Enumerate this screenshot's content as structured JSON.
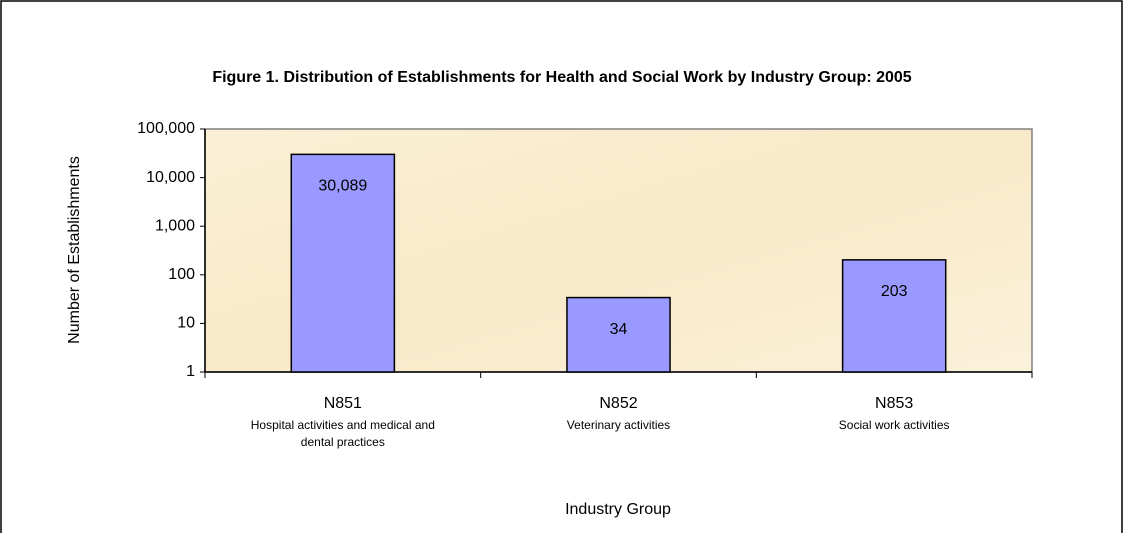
{
  "chart_data": {
    "type": "bar",
    "title": "Figure 1.   Distribution of Establishments for Health and Social Work by Industry Group:  2005",
    "categories": [
      "N851",
      "N852",
      "N853"
    ],
    "category_descriptions": [
      "Hospital activities and medical and dental practices",
      "Veterinary activities",
      "Social work activities"
    ],
    "values": [
      30089,
      34,
      203
    ],
    "value_labels": [
      "30,089",
      "34",
      "203"
    ],
    "color": "#9999ff",
    "x_label": "Industry Group",
    "y_label": "Number of Establishments",
    "yscale": "log",
    "ylim": [
      1,
      100000
    ],
    "yticks": [
      1,
      10,
      100,
      {
        "value": 1000,
        "label": "1,000"
      },
      {
        "value": 10000,
        "label": "10,000"
      },
      {
        "value": 100000,
        "label": "100,000"
      }
    ],
    "grid": false
  }
}
